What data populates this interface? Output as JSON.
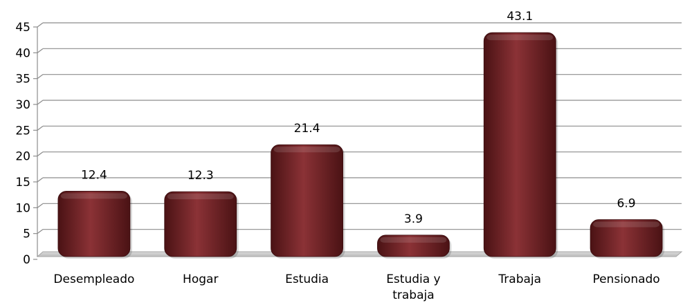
{
  "chart_data": {
    "type": "bar",
    "title": "",
    "xlabel": "",
    "ylabel": "",
    "categories": [
      "Desempleado",
      "Hogar",
      "Estudia",
      "Estudia y trabaja",
      "Trabaja",
      "Pensionado"
    ],
    "category_label_lines": [
      [
        "Desempleado"
      ],
      [
        "Hogar"
      ],
      [
        "Estudia"
      ],
      [
        "Estudia y",
        "trabaja"
      ],
      [
        "Trabaja"
      ],
      [
        "Pensionado"
      ]
    ],
    "values": [
      12.4,
      12.3,
      21.4,
      3.9,
      43.1,
      6.9
    ],
    "data_labels": [
      "12.4",
      "12.3",
      "21.4",
      "3.9",
      "43.1",
      "6.9"
    ],
    "ylim": [
      0,
      45
    ],
    "yticks": [
      0,
      5,
      10,
      15,
      20,
      25,
      30,
      35,
      40,
      45
    ],
    "grid": true,
    "legend": "none",
    "colors": {
      "bar": "#6e1f22",
      "bar_light": "#8b3236",
      "bar_dark": "#4a1214",
      "grid": "#8c8c8c",
      "floor": "#c9c9c9"
    }
  }
}
